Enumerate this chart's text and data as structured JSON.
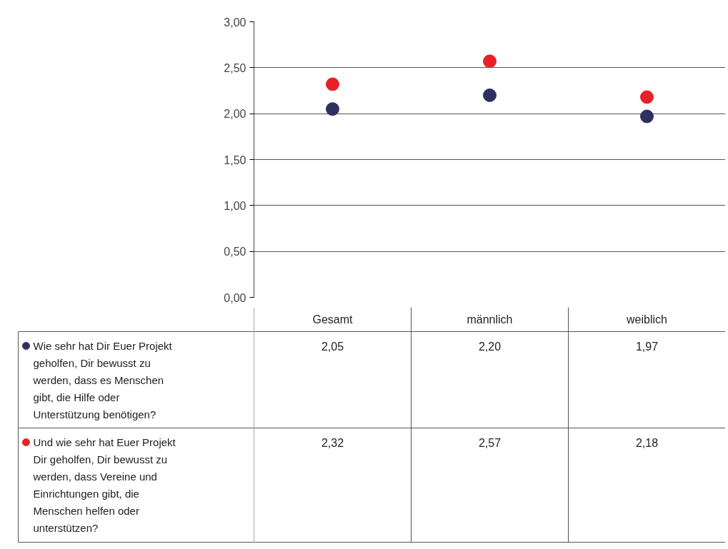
{
  "chart_data": {
    "type": "scatter",
    "categories": [
      "Gesamt",
      "männlich",
      "weiblich"
    ],
    "series": [
      {
        "name": "Wie sehr hat Dir Euer Projekt geholfen, Dir bewusst zu werden, dass es Menschen gibt, die Hilfe oder Unterstützung benötigen?",
        "color": "#2e3160",
        "values": [
          2.05,
          2.2,
          1.97
        ],
        "value_labels": [
          "2,05",
          "2,20",
          "1,97"
        ]
      },
      {
        "name": "Und wie sehr hat Euer Projekt Dir geholfen, Dir bewusst zu werden, dass Vereine und Einrichtungen gibt, die Menschen helfen oder unterstützen?",
        "color": "#e8202a",
        "values": [
          2.32,
          2.57,
          2.18
        ],
        "value_labels": [
          "2,32",
          "2,57",
          "2,18"
        ]
      }
    ],
    "ylim": [
      0,
      3
    ],
    "yticks": [
      {
        "value": 0,
        "label": "0,00"
      },
      {
        "value": 0.5,
        "label": "0,50"
      },
      {
        "value": 1,
        "label": "1,00"
      },
      {
        "value": 1.5,
        "label": "1,50"
      },
      {
        "value": 2,
        "label": "2,00"
      },
      {
        "value": 2.5,
        "label": "2,50"
      },
      {
        "value": 3,
        "label": "3,00"
      }
    ],
    "grid": "y",
    "marker": "circle",
    "legend": "bottom"
  }
}
